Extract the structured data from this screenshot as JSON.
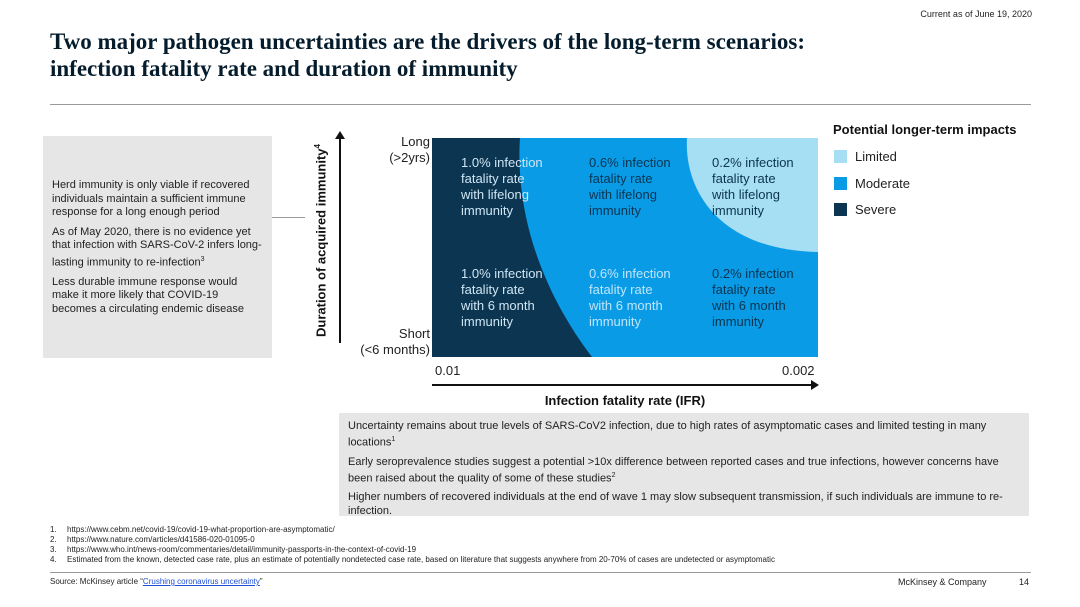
{
  "header": {
    "current_as_of": "Current as of June 19, 2020",
    "title_line1": "Two major pathogen uncertainties are the drivers of the long-term scenarios:",
    "title_line2": "infection fatality rate and duration of immunity"
  },
  "left_box": {
    "paragraphs": [
      "Herd immunity is only viable if recovered individuals maintain a sufficient immune response for a long enough period",
      "As of May 2020, there is no evidence yet that infection with SARS-CoV-2 infers long-lasting immunity to re-infection",
      "Less durable immune response would make it more likely that COVID-19 becomes a circulating endemic disease"
    ],
    "para2_sup": "3"
  },
  "matrix": {
    "y_axis_label": "Duration of acquired immunity",
    "y_axis_sup": "4",
    "y_top_line1": "Long",
    "y_top_line2": "(>2yrs)",
    "y_bottom_line1": "Short",
    "y_bottom_line2": "(<6 months)",
    "x_axis_label": "Infection fatality rate (IFR)",
    "x_tick_left": "0.01",
    "x_tick_right": "0.002",
    "cells": {
      "top_left": [
        "1.0% infection",
        "fatality rate",
        "with lifelong",
        "immunity"
      ],
      "top_mid": [
        "0.6% infection",
        "fatality rate",
        "with lifelong",
        "immunity"
      ],
      "top_right": [
        "0.2% infection",
        "fatality rate",
        "with lifelong",
        "immunity"
      ],
      "bottom_left": [
        "1.0% infection",
        "fatality rate",
        "with 6 month",
        "immunity"
      ],
      "bottom_mid": [
        "0.6% infection",
        "fatality rate",
        "with 6 month",
        "immunity"
      ],
      "bottom_right": [
        "0.2% infection",
        "fatality rate",
        "with 6 month",
        "immunity"
      ]
    },
    "colors": {
      "severe": "#0b3550",
      "moderate": "#0a9be6",
      "limited": "#a6def4"
    }
  },
  "legend": {
    "title": "Potential longer-term impacts",
    "items": [
      {
        "label": "Limited",
        "color": "#a6def4"
      },
      {
        "label": "Moderate",
        "color": "#0a9be6"
      },
      {
        "label": "Severe",
        "color": "#0b3550"
      }
    ]
  },
  "bottom_box": {
    "p1": "Uncertainty remains about true levels of SARS-CoV2 infection, due to high rates of asymptomatic cases and limited testing in many locations",
    "p1_sup": "1",
    "p2": "Early seroprevalence studies suggest a potential >10x difference between reported cases and true infections, however concerns have been raised about the quality of some of these studies",
    "p2_sup": "2",
    "p3": "Higher numbers of recovered individuals at the end of wave 1 may slow subsequent transmission, if such individuals are immune to re-infection."
  },
  "footnotes": [
    {
      "num": "1.",
      "text": "https://www.cebm.net/covid-19/covid-19-what-proportion-are-asymptomatic/"
    },
    {
      "num": "2.",
      "text": "https://www.nature.com/articles/d41586-020-01095-0"
    },
    {
      "num": "3.",
      "text": "https://www.who.int/news-room/commentaries/detail/immunity-passports-in-the-context-of-covid-19"
    },
    {
      "num": "4.",
      "text": "Estimated from the known, detected case rate, plus an estimate of potentially nondetected case rate, based on literature that suggests anywhere from 20-70% of cases are undetected or asymptomatic"
    }
  ],
  "footer": {
    "source_prefix": "Source: McKinsey article “",
    "source_link": "Crushing coronavirus uncertainty",
    "source_suffix": "”",
    "company": "McKinsey & Company",
    "page_number": "14"
  }
}
